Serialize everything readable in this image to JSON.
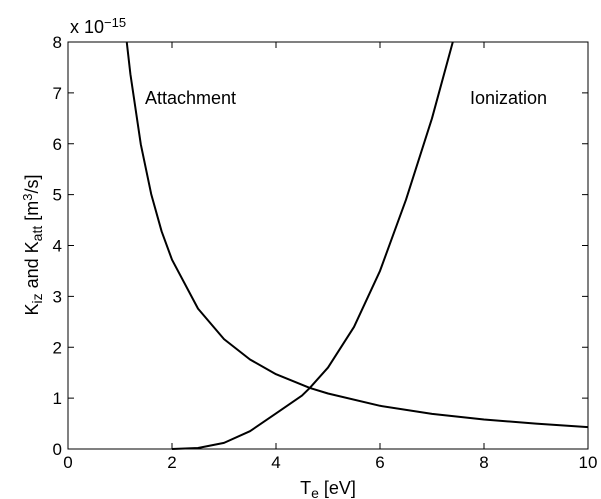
{
  "chart_data": {
    "type": "line",
    "axis_multiplier": [
      {
        "text": "x 10"
      },
      {
        "text": "−15",
        "shift": "super"
      }
    ],
    "xlabel": [
      {
        "text": "T"
      },
      {
        "text": "e",
        "shift": "sub"
      },
      {
        "text": " [eV]"
      }
    ],
    "ylabel": [
      {
        "text": "K"
      },
      {
        "text": "iz",
        "shift": "sub"
      },
      {
        "text": " and K"
      },
      {
        "text": "att",
        "shift": "sub"
      },
      {
        "text": " [m"
      },
      {
        "text": "3",
        "shift": "super"
      },
      {
        "text": "/s]"
      }
    ],
    "annotations": [
      "Attachment",
      "Ionization"
    ],
    "xlim": [
      0,
      10
    ],
    "xticks": [
      0,
      2,
      4,
      6,
      8,
      10
    ],
    "ylim": [
      0,
      8
    ],
    "yticks": [
      0,
      1,
      2,
      3,
      4,
      5,
      6,
      7,
      8
    ],
    "series": [
      {
        "name": "Attachment",
        "color": "#000000",
        "x": [
          1.13,
          1.2,
          1.4,
          1.6,
          1.8,
          2,
          2.5,
          3,
          3.5,
          4,
          4.65,
          5,
          6,
          7,
          8,
          9,
          10
        ],
        "values": [
          7.99,
          7.37,
          5.99,
          5.01,
          4.28,
          3.72,
          2.76,
          2.16,
          1.76,
          1.47,
          1.2,
          1.09,
          0.85,
          0.69,
          0.58,
          0.5,
          0.43
        ]
      },
      {
        "name": "Ionization",
        "color": "#000000",
        "x": [
          2,
          2.5,
          3,
          3.5,
          4,
          4.5,
          4.65,
          5,
          5.5,
          6,
          6.5,
          7,
          7.4
        ],
        "values": [
          0,
          0.02,
          0.12,
          0.35,
          0.7,
          1.05,
          1.2,
          1.6,
          2.4,
          3.5,
          4.9,
          6.5,
          8
        ]
      }
    ]
  }
}
